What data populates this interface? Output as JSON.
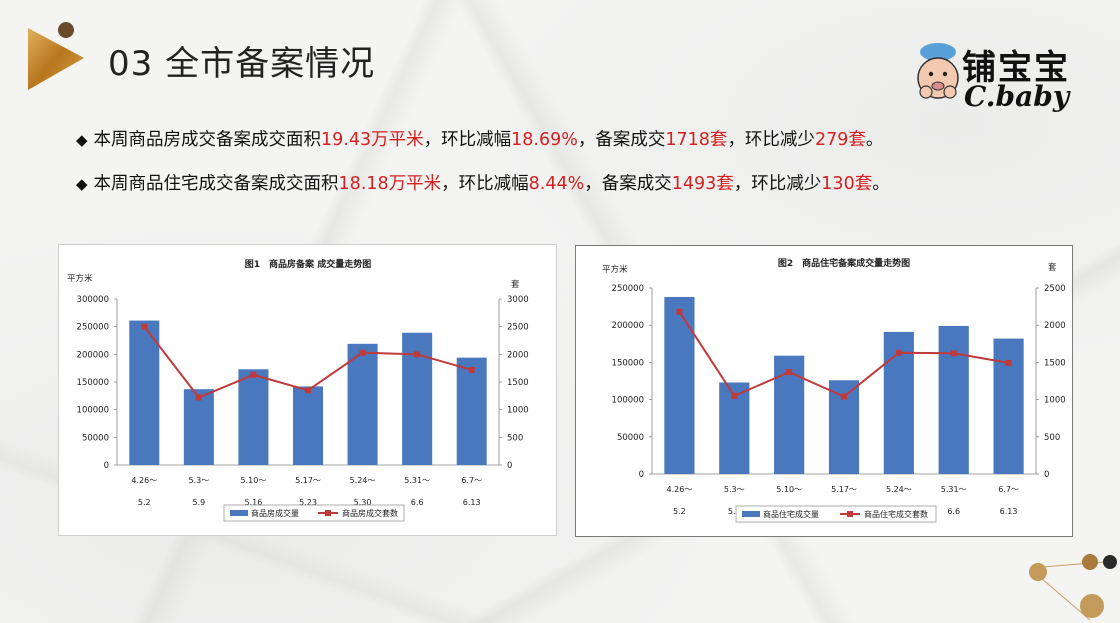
{
  "header": {
    "title": "03 全市备案情况",
    "brand_cn": "铺宝宝",
    "brand_en": "C.baby"
  },
  "bullets": [
    {
      "marker": "◆",
      "parts": [
        {
          "t": "本周商品房成交备案成交面积",
          "hl": false
        },
        {
          "t": "19.43万平米",
          "hl": true
        },
        {
          "t": "，环比减幅",
          "hl": false
        },
        {
          "t": "18.69%",
          "hl": true
        },
        {
          "t": "，备案成交",
          "hl": false
        },
        {
          "t": "1718套",
          "hl": true
        },
        {
          "t": "，环比减少",
          "hl": false
        },
        {
          "t": "279套",
          "hl": true
        },
        {
          "t": "。",
          "hl": false
        }
      ]
    },
    {
      "marker": "◆",
      "parts": [
        {
          "t": "本周商品住宅成交备案成交面积",
          "hl": false
        },
        {
          "t": "18.18万平米",
          "hl": true
        },
        {
          "t": "，环比减幅",
          "hl": false
        },
        {
          "t": "8.44%",
          "hl": true
        },
        {
          "t": "，备案成交",
          "hl": false
        },
        {
          "t": "1493套",
          "hl": true
        },
        {
          "t": "，环比减少",
          "hl": false
        },
        {
          "t": "130套",
          "hl": true
        },
        {
          "t": "。",
          "hl": false
        }
      ]
    }
  ],
  "chart_data": [
    {
      "type": "bar",
      "title": "图1　商品房备案 成交量走势图",
      "ylabel": "平方米",
      "y2label": "套",
      "categories": [
        "4.26～\n5.2",
        "5.3～\n5.9",
        "5.10～\n5.16",
        "5.17～\n5.23",
        "5.24～\n5.30",
        "5.31～\n6.6",
        "6.7～\n6.13"
      ],
      "ylim": [
        0,
        300000
      ],
      "y2lim": [
        0,
        3000
      ],
      "yticks": [
        0,
        50000,
        100000,
        150000,
        200000,
        250000,
        300000
      ],
      "y2ticks": [
        0,
        500,
        1000,
        1500,
        2000,
        2500,
        3000
      ],
      "series": [
        {
          "name": "商品房成交量",
          "kind": "bar",
          "color": "#4a78be",
          "values": [
            261000,
            137000,
            173000,
            142000,
            219000,
            239000,
            194000
          ]
        },
        {
          "name": "商品房成交套数",
          "kind": "line",
          "axis": "right",
          "color": "#c0393b",
          "values": [
            2500,
            1220,
            1630,
            1350,
            2030,
            2000,
            1718
          ]
        }
      ],
      "legend": "bottom"
    },
    {
      "type": "bar",
      "title": "图2　商品住宅备案成交量走势图",
      "ylabel": "平方米",
      "y2label": "套",
      "categories": [
        "4.26～\n5.2",
        "5.3～\n5.9",
        "5.10～\n5.16",
        "5.17～\n5.23",
        "5.24～\n5.30",
        "5.31～\n6.6",
        "6.7～\n6.13"
      ],
      "ylim": [
        0,
        250000
      ],
      "y2lim": [
        0,
        2500
      ],
      "yticks": [
        0,
        50000,
        100000,
        150000,
        200000,
        250000
      ],
      "y2ticks": [
        0,
        500,
        1000,
        1500,
        2000,
        2500
      ],
      "series": [
        {
          "name": "商品住宅成交量",
          "kind": "bar",
          "color": "#4a78be",
          "values": [
            238000,
            123000,
            159000,
            126000,
            191000,
            199000,
            182000
          ]
        },
        {
          "name": "商品住宅成交套数",
          "kind": "line",
          "axis": "right",
          "color": "#c0393b",
          "values": [
            2180,
            1050,
            1370,
            1040,
            1630,
            1623,
            1493
          ]
        }
      ],
      "legend": "bottom"
    }
  ],
  "colors": {
    "highlight": "#d42020",
    "bar": "#4a78be",
    "line": "#c0393b",
    "logo_gold": "#c8902a"
  }
}
